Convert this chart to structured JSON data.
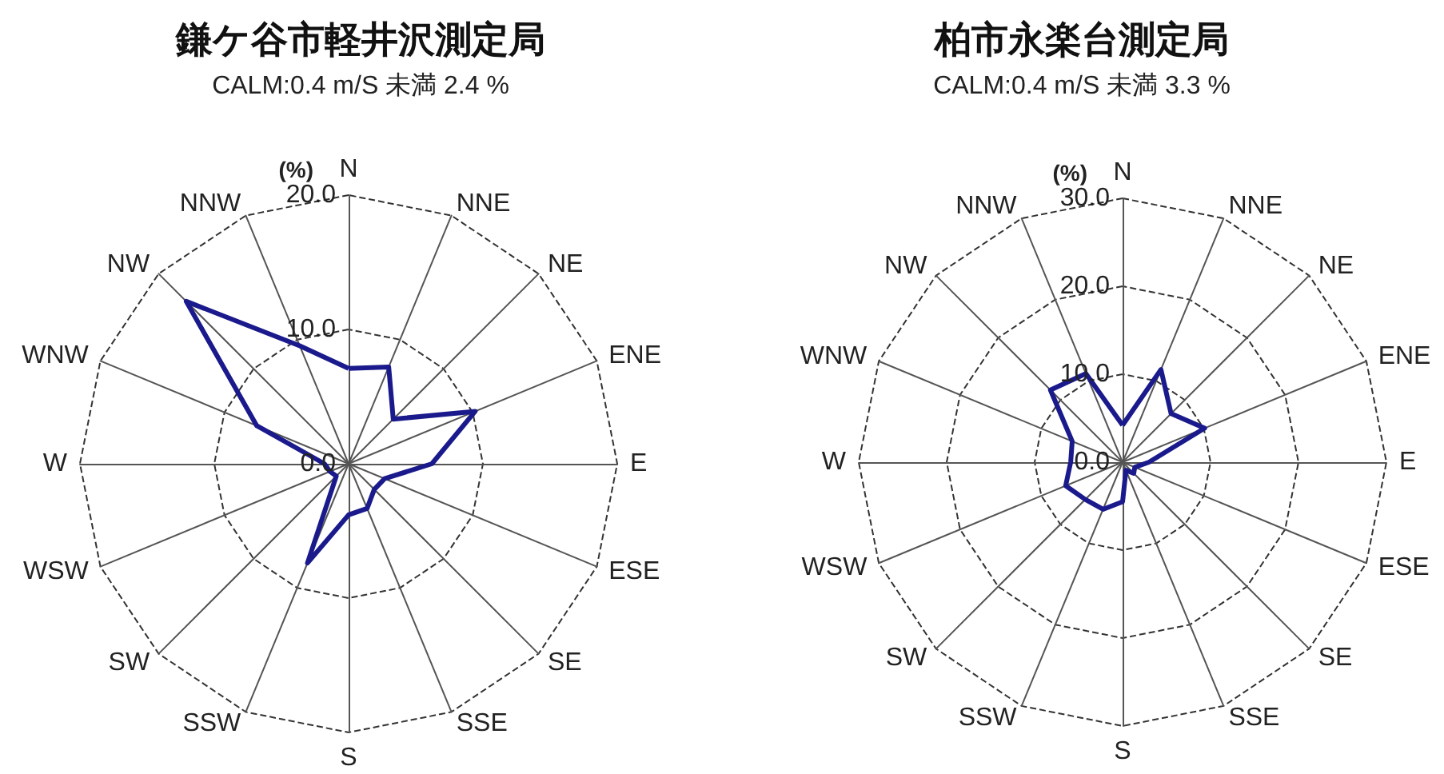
{
  "chart_data": [
    {
      "type": "radar",
      "title": "鎌ケ谷市軽井沢測定局",
      "subtitle": "CALM:0.4 m/S 未満 2.4 %",
      "ylabel": "(%)",
      "categories": [
        "N",
        "NNE",
        "NE",
        "ENE",
        "E",
        "ESE",
        "SE",
        "SSE",
        "S",
        "SSW",
        "SW",
        "WSW",
        "W",
        "WNW",
        "NW",
        "NNW"
      ],
      "series": [
        {
          "color": "#1a1a8c",
          "values": [
            7.1,
            7.8,
            4.7,
            10.2,
            6.2,
            2.9,
            2.7,
            3.6,
            3.8,
            8.0,
            1.3,
            1.5,
            1.8,
            7.4,
            17.1,
            9.5
          ]
        }
      ],
      "ylim": [
        0,
        20
      ],
      "yticks": [
        {
          "value": 0,
          "label": "0.0"
        },
        {
          "value": 10,
          "label": "10.0"
        },
        {
          "value": 20,
          "label": "20.0"
        }
      ],
      "grid": true,
      "marker": "none"
    },
    {
      "type": "radar",
      "title": "柏市永楽台測定局",
      "subtitle": "CALM:0.4 m/S 未満 3.3 %",
      "ylabel": "(%)",
      "categories": [
        "N",
        "NNE",
        "NE",
        "ENE",
        "E",
        "ESE",
        "SE",
        "SSE",
        "S",
        "SSW",
        "SW",
        "WSW",
        "W",
        "WNW",
        "NW",
        "NNW"
      ],
      "series": [
        {
          "color": "#1a1a8c",
          "values": [
            4.2,
            11.4,
            7.8,
            10.1,
            3.0,
            1.5,
            1.8,
            1.0,
            4.5,
            5.8,
            6.0,
            7.0,
            5.9,
            6.2,
            11.6,
            10.9
          ]
        }
      ],
      "ylim": [
        0,
        30
      ],
      "yticks": [
        {
          "value": 0,
          "label": "0.0"
        },
        {
          "value": 10,
          "label": "10.0"
        },
        {
          "value": 20,
          "label": "20.0"
        },
        {
          "value": 30,
          "label": "30.0"
        }
      ],
      "grid": true,
      "marker": "none"
    }
  ]
}
